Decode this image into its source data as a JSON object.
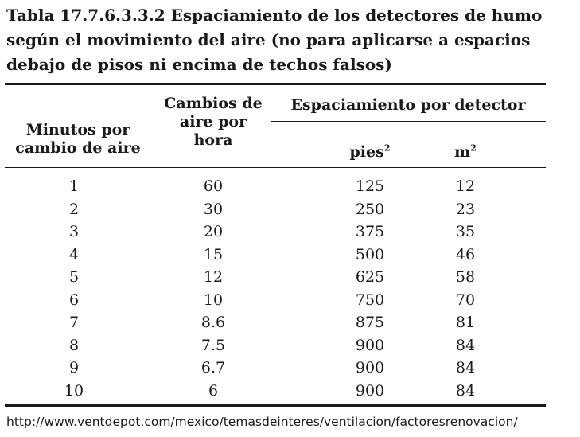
{
  "title": "Tabla 17.7.6.3.3.2  Espaciamiento de los detectores de humo según el movimiento del aire (no para aplicarse a espacios debajo de pisos ni encima de techos falsos)",
  "headers": {
    "minutes_line1": "Minutos por",
    "minutes_line2": "cambio de aire",
    "changes_line1": "Cambios de",
    "changes_line2": "aire por",
    "changes_line3": "hora",
    "spacing": "Espaciamiento por detector",
    "feet_unit": "pies",
    "feet_exp": "2",
    "meter_unit": "m",
    "meter_exp": "2"
  },
  "rows": [
    {
      "minutes": "1",
      "changes": "60",
      "ft2": "125",
      "m2": "12"
    },
    {
      "minutes": "2",
      "changes": "30",
      "ft2": "250",
      "m2": "23"
    },
    {
      "minutes": "3",
      "changes": "20",
      "ft2": "375",
      "m2": "35"
    },
    {
      "minutes": "4",
      "changes": "15",
      "ft2": "500",
      "m2": "46"
    },
    {
      "minutes": "5",
      "changes": "12",
      "ft2": "625",
      "m2": "58"
    },
    {
      "minutes": "6",
      "changes": "10",
      "ft2": "750",
      "m2": "70"
    },
    {
      "minutes": "7",
      "changes": "8.6",
      "ft2": "875",
      "m2": "81"
    },
    {
      "minutes": "8",
      "changes": "7.5",
      "ft2": "900",
      "m2": "84"
    },
    {
      "minutes": "9",
      "changes": "6.7",
      "ft2": "900",
      "m2": "84"
    },
    {
      "minutes": "10",
      "changes": "6",
      "ft2": "900",
      "m2": "84"
    }
  ],
  "source_link": "http://www.ventdepot.com/mexico/temasdeinteres/ventilacion/factoresrenovacion/"
}
